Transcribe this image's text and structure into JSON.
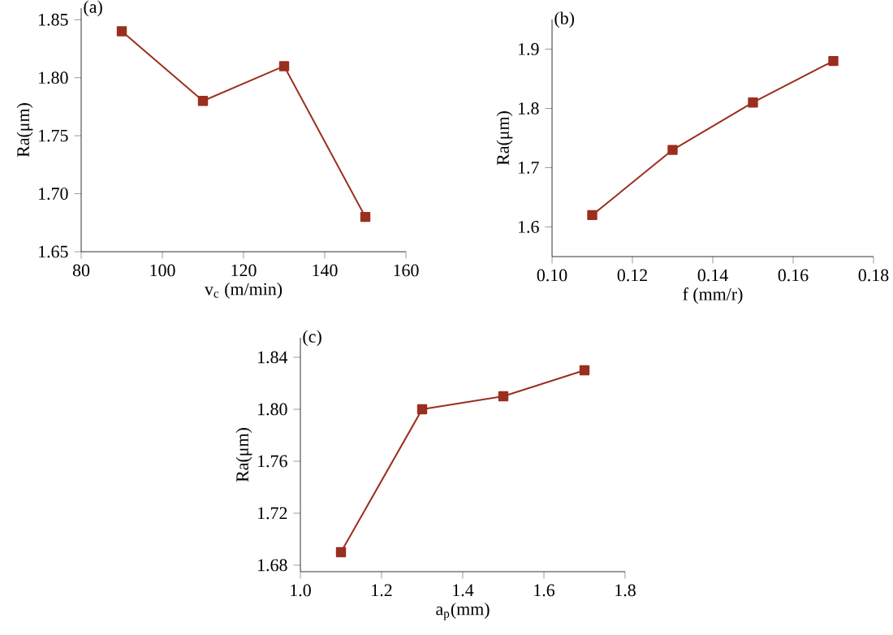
{
  "chart_data": [
    {
      "type": "line",
      "title": "(a)",
      "xlabel": "v$_{c}$ (m/min)",
      "ylabel": "Ra(μm)",
      "x": [
        90,
        110,
        130,
        150
      ],
      "series": [
        {
          "color": "#9b2f1f",
          "values": [
            1.84,
            1.78,
            1.81,
            1.68
          ]
        }
      ],
      "xlim": [
        80,
        160
      ],
      "xticks": [
        80,
        100,
        120,
        140,
        160
      ],
      "ylim": [
        1.65,
        1.86
      ],
      "yticks": [
        {
          "value": 1.65,
          "label": "1.65"
        },
        {
          "value": 1.7,
          "label": "1.70"
        },
        {
          "value": 1.75,
          "label": "1.75"
        },
        {
          "value": 1.8,
          "label": "1.80"
        },
        {
          "value": 1.85,
          "label": "1.85"
        }
      ],
      "marker": "square",
      "line_style": "solid"
    },
    {
      "type": "line",
      "title": "(b)",
      "xlabel": "f (mm/r)",
      "ylabel": "Ra(μm)",
      "x": [
        0.11,
        0.13,
        0.15,
        0.17
      ],
      "series": [
        {
          "color": "#9b2f1f",
          "values": [
            1.62,
            1.73,
            1.81,
            1.88
          ]
        }
      ],
      "xlim": [
        0.1,
        0.18
      ],
      "xticks": [
        {
          "value": 0.1,
          "label": "0.10"
        },
        {
          "value": 0.12,
          "label": "0.12"
        },
        {
          "value": 0.14,
          "label": "0.14"
        },
        {
          "value": 0.16,
          "label": "0.16"
        },
        {
          "value": 0.18,
          "label": "0.18"
        }
      ],
      "ylim": [
        1.55,
        1.95
      ],
      "yticks": [
        1.6,
        1.7,
        1.8,
        1.9
      ],
      "marker": "square",
      "line_style": "solid"
    },
    {
      "type": "line",
      "title": "(c)",
      "xlabel": "a$_{p}$(mm)",
      "ylabel": "Ra(μm)",
      "x": [
        1.1,
        1.3,
        1.5,
        1.7
      ],
      "series": [
        {
          "color": "#9b2f1f",
          "values": [
            1.69,
            1.8,
            1.81,
            1.83
          ]
        }
      ],
      "xlim": [
        1.0,
        1.8
      ],
      "xticks": [
        {
          "value": 1.0,
          "label": "1.0"
        },
        1.2,
        1.4,
        1.6,
        1.8
      ],
      "ylim": [
        1.675,
        1.855
      ],
      "yticks": [
        {
          "value": 1.68,
          "label": "1.68"
        },
        {
          "value": 1.72,
          "label": "1.72"
        },
        {
          "value": 1.76,
          "label": "1.76"
        },
        {
          "value": 1.8,
          "label": "1.80"
        },
        {
          "value": 1.84,
          "label": "1.84"
        }
      ],
      "marker": "square",
      "line_style": "solid"
    }
  ]
}
